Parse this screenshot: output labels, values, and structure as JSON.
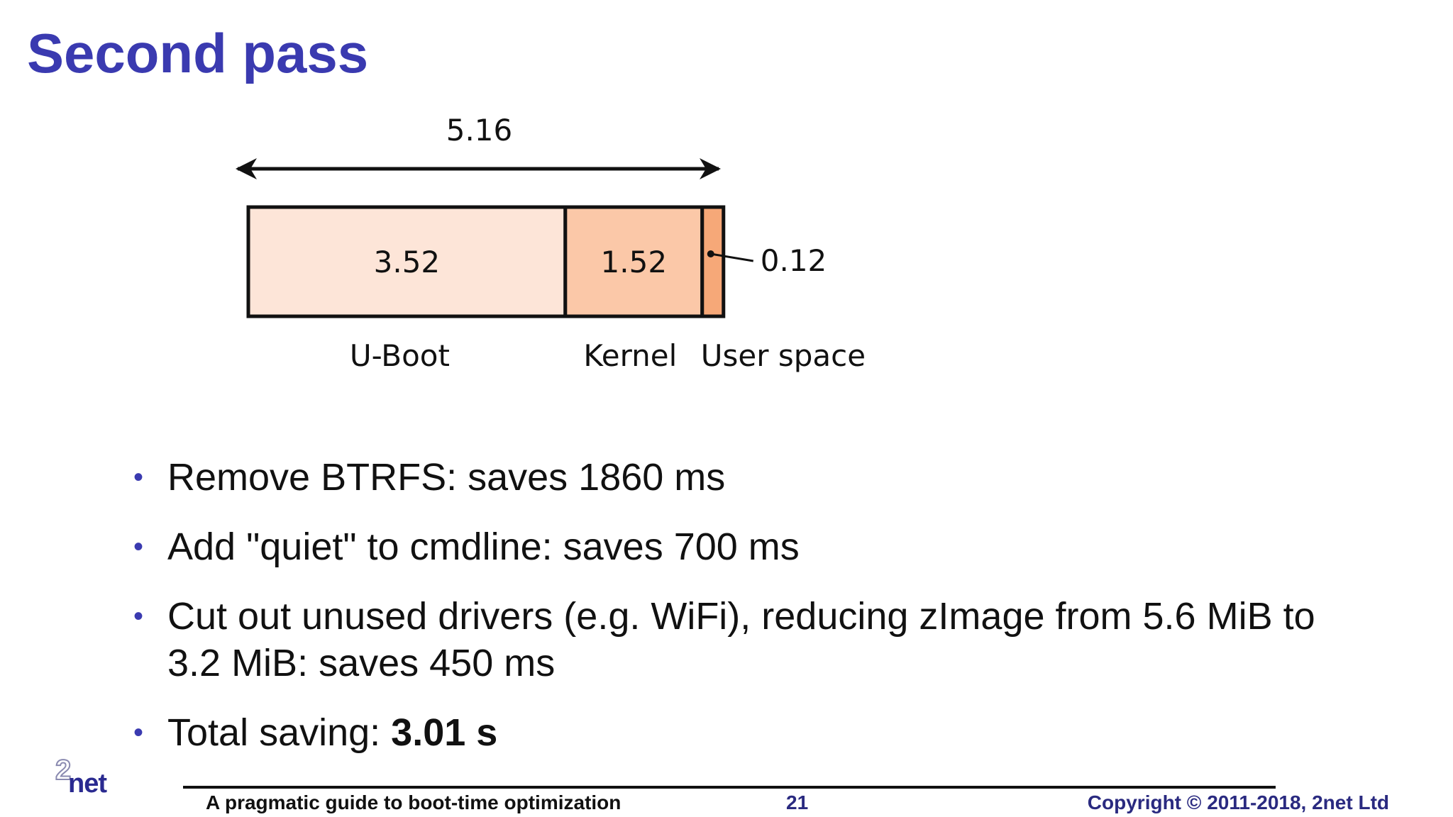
{
  "title": "Second pass",
  "chart_data": {
    "type": "bar",
    "orientation": "horizontal-stacked",
    "total_label": "5.16",
    "segments": [
      {
        "name": "U-Boot",
        "value": 3.52,
        "label": "3.52",
        "color": "#fde5d8"
      },
      {
        "name": "Kernel",
        "value": 1.52,
        "label": "1.52",
        "color": "#fbc8a8"
      },
      {
        "name": "User space",
        "value": 0.12,
        "label": "0.12",
        "color": "#f6a878"
      }
    ]
  },
  "bullets": [
    {
      "text": "Remove BTRFS: saves 1860 ms"
    },
    {
      "text": "Add \"quiet\" to cmdline: saves 700 ms"
    },
    {
      "text": "Cut out unused drivers (e.g. WiFi), reducing zImage from 5.6 MiB to 3.2 MiB: saves 450 ms"
    },
    {
      "text": "Total saving: ",
      "bold": "3.01 s"
    }
  ],
  "bullet_glyph": "•",
  "footer": {
    "left": "A pragmatic guide to boot-time optimization",
    "page": "21",
    "right": "Copyright © 2011-2018, 2net Ltd"
  },
  "logo": {
    "two": "2",
    "net": "net"
  },
  "colors": {
    "title": "#3a3ab0",
    "accent": "#2a2a80"
  }
}
